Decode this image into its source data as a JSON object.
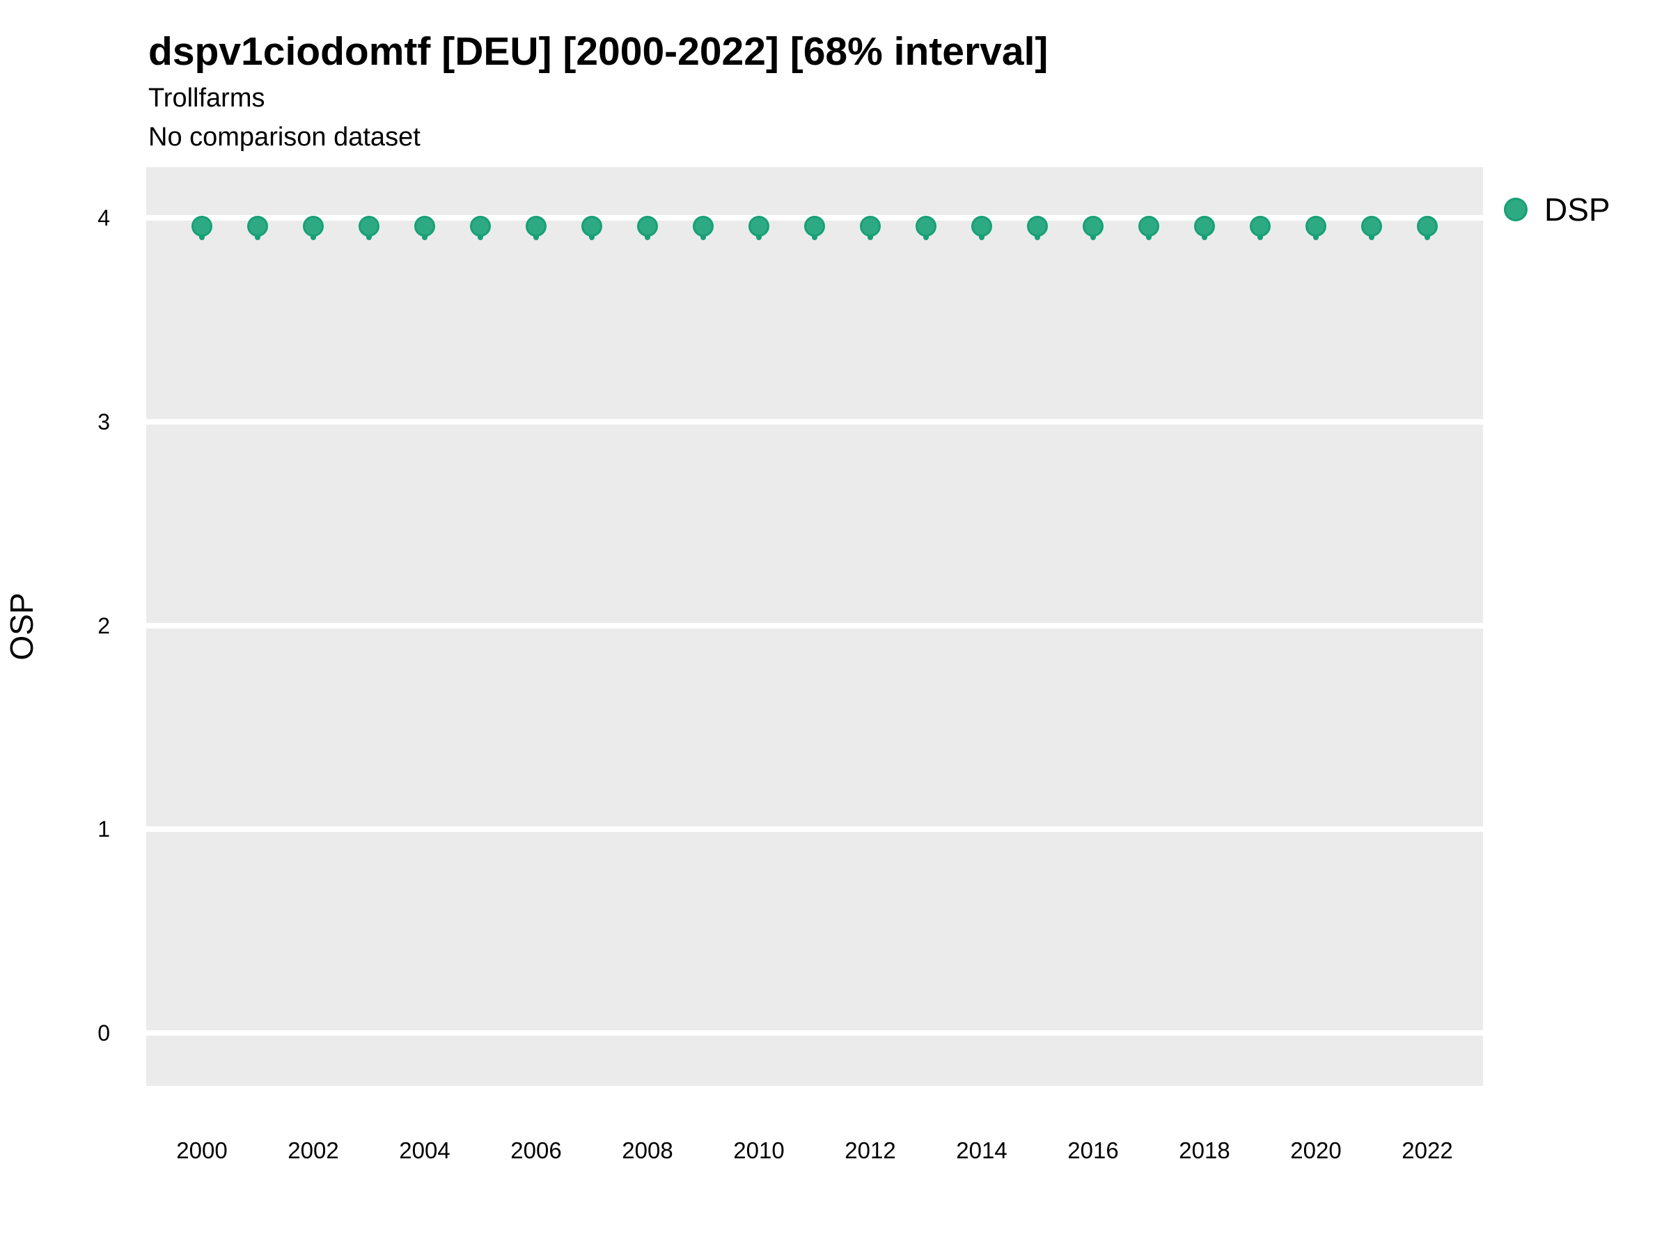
{
  "header": {
    "title": "dspv1ciodomtf [DEU] [2000-2022] [68% interval]",
    "subtitle": "Trollfarms",
    "comparison_note": "No comparison dataset"
  },
  "axes": {
    "y_title": "OSP",
    "y_ticks": [
      0,
      1,
      2,
      3,
      4
    ],
    "x_ticks": [
      2000,
      2002,
      2004,
      2006,
      2008,
      2010,
      2012,
      2014,
      2016,
      2018,
      2020,
      2022
    ]
  },
  "legend": {
    "items": [
      {
        "label": "DSP",
        "marker": "circle",
        "fill": "#2EAA82",
        "stroke": "#17A076"
      }
    ]
  },
  "colors": {
    "panel_background": "#EBEBEB",
    "gridline": "#FFFFFF",
    "point_fill": "#2EAA82",
    "point_stroke": "#17A076",
    "text": "#000000"
  },
  "chart_data": {
    "type": "scatter",
    "title": "dspv1ciodomtf [DEU] [2000-2022] [68% interval]",
    "subtitle": "Trollfarms",
    "note": "No comparison dataset",
    "xlabel": "",
    "ylabel": "OSP",
    "x": [
      2000,
      2001,
      2002,
      2003,
      2004,
      2005,
      2006,
      2007,
      2008,
      2009,
      2010,
      2011,
      2012,
      2013,
      2014,
      2015,
      2016,
      2017,
      2018,
      2019,
      2020,
      2021,
      2022
    ],
    "series": [
      {
        "name": "DSP",
        "values": [
          3.96,
          3.96,
          3.96,
          3.96,
          3.96,
          3.96,
          3.96,
          3.96,
          3.96,
          3.96,
          3.96,
          3.96,
          3.96,
          3.96,
          3.96,
          3.96,
          3.96,
          3.96,
          3.96,
          3.96,
          3.96,
          3.96,
          3.96
        ],
        "interval_low": 3.89,
        "interval_high": 4.0,
        "interval_note": "68% interval bars barely exceed marker size",
        "color": "#2EAA82"
      }
    ],
    "xlim": [
      1999,
      2023
    ],
    "ylim": [
      -0.26,
      4.25
    ],
    "x_tick_step": 2,
    "grid": "horizontal major gridlines only, white on gray panel",
    "legend_position": "right-top",
    "panel_background": "#EBEBEB"
  }
}
